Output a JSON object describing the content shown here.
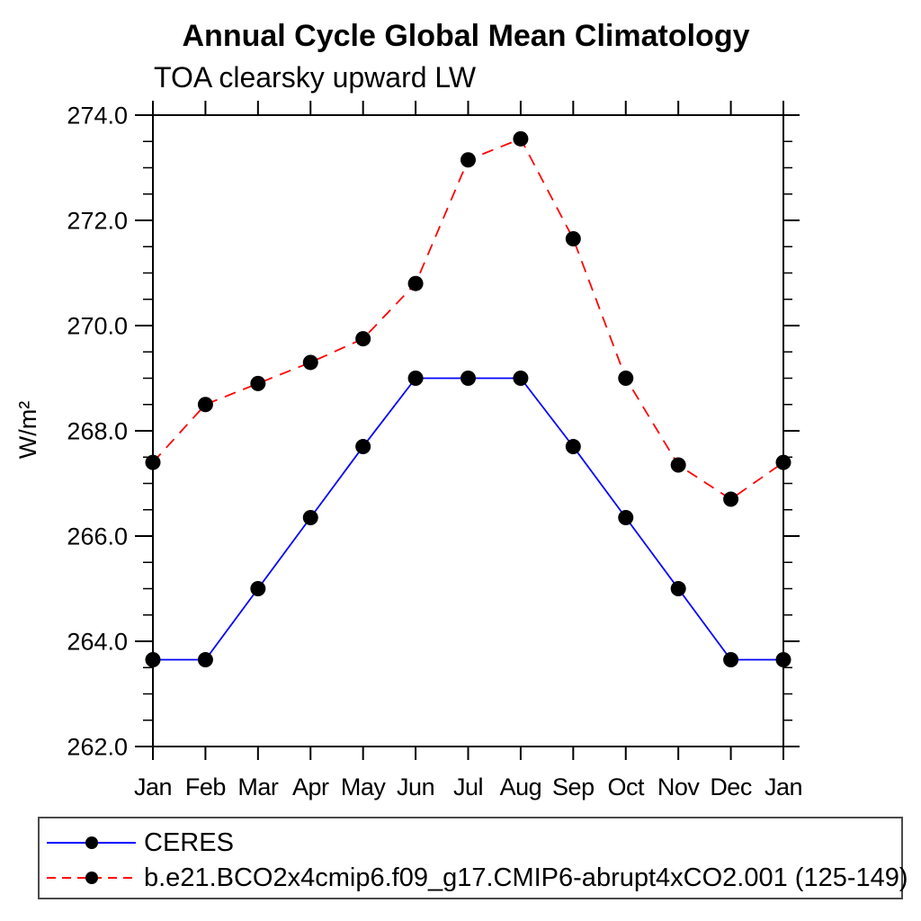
{
  "chart_data": {
    "type": "line",
    "title": "Annual Cycle Global Mean Climatology",
    "subtitle": "TOA clearsky upward LW",
    "ylabel": "W/m²",
    "xlabel": "",
    "categories": [
      "Jan",
      "Feb",
      "Mar",
      "Apr",
      "May",
      "Jun",
      "Jul",
      "Aug",
      "Sep",
      "Oct",
      "Nov",
      "Dec",
      "Jan"
    ],
    "ylim": [
      262.0,
      274.0
    ],
    "y_major_step": 2.0,
    "y_minor_step": 0.5,
    "y_tick_labels": [
      "262.0",
      "264.0",
      "266.0",
      "268.0",
      "270.0",
      "272.0",
      "274.0"
    ],
    "grid": false,
    "legend_position": "bottom",
    "axis_color": "#000000",
    "marker_color": "#000000",
    "series": [
      {
        "name": "CERES",
        "color": "#0000ff",
        "line_style": "solid",
        "marker": "circle",
        "values": [
          263.65,
          263.65,
          265.0,
          266.35,
          267.7,
          269.0,
          269.0,
          269.0,
          267.7,
          266.35,
          265.0,
          263.65,
          263.65
        ]
      },
      {
        "name": "b.e21.BCO2x4cmip6.f09_g17.CMIP6-abrupt4xCO2.001 (125-149)",
        "color": "#ff0000",
        "line_style": "dashed",
        "marker": "circle",
        "values": [
          267.4,
          268.5,
          268.9,
          269.3,
          269.75,
          270.8,
          273.15,
          273.55,
          271.65,
          269.0,
          267.35,
          266.7,
          267.4
        ]
      }
    ]
  }
}
